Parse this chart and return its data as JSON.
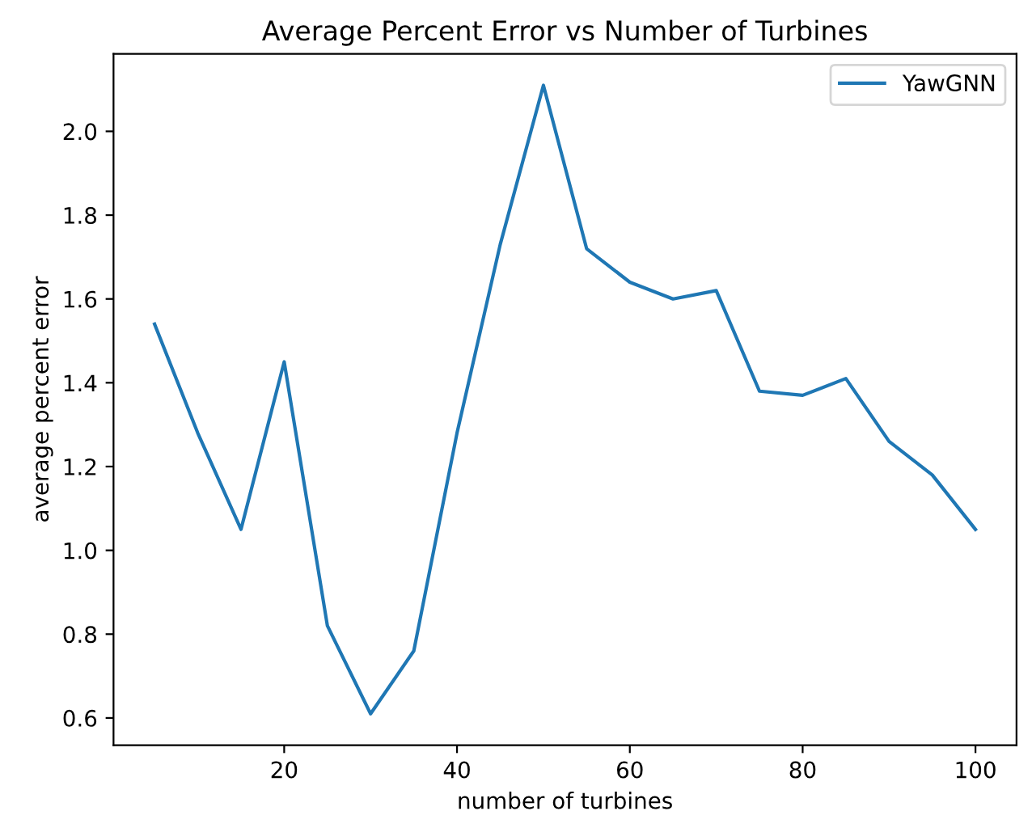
{
  "chart_data": {
    "type": "line",
    "title": "Average Percent Error vs Number of Turbines",
    "xlabel": "number of turbines",
    "ylabel": "average percent error",
    "x": [
      5,
      10,
      15,
      20,
      25,
      30,
      35,
      40,
      45,
      50,
      55,
      60,
      65,
      70,
      75,
      80,
      85,
      90,
      95,
      100
    ],
    "series": [
      {
        "name": "YawGNN",
        "color": "#1f77b4",
        "values": [
          1.54,
          1.28,
          1.05,
          1.45,
          0.82,
          0.61,
          0.76,
          1.28,
          1.73,
          2.11,
          1.72,
          1.64,
          1.6,
          1.62,
          1.38,
          1.37,
          1.41,
          1.26,
          1.18,
          1.05
        ]
      }
    ],
    "xlim": [
      0.25,
      104.75
    ],
    "ylim": [
      0.535,
      2.185
    ],
    "xticks": [
      20,
      40,
      60,
      80,
      100
    ],
    "yticks": [
      0.6,
      0.8,
      {
        "value": 1,
        "label": "1.0"
      },
      1.2,
      1.4,
      1.6,
      1.8,
      {
        "value": 2,
        "label": "2.0"
      }
    ],
    "legend": "upper right",
    "grid": false,
    "marker": "none",
    "line_style": "solid"
  }
}
